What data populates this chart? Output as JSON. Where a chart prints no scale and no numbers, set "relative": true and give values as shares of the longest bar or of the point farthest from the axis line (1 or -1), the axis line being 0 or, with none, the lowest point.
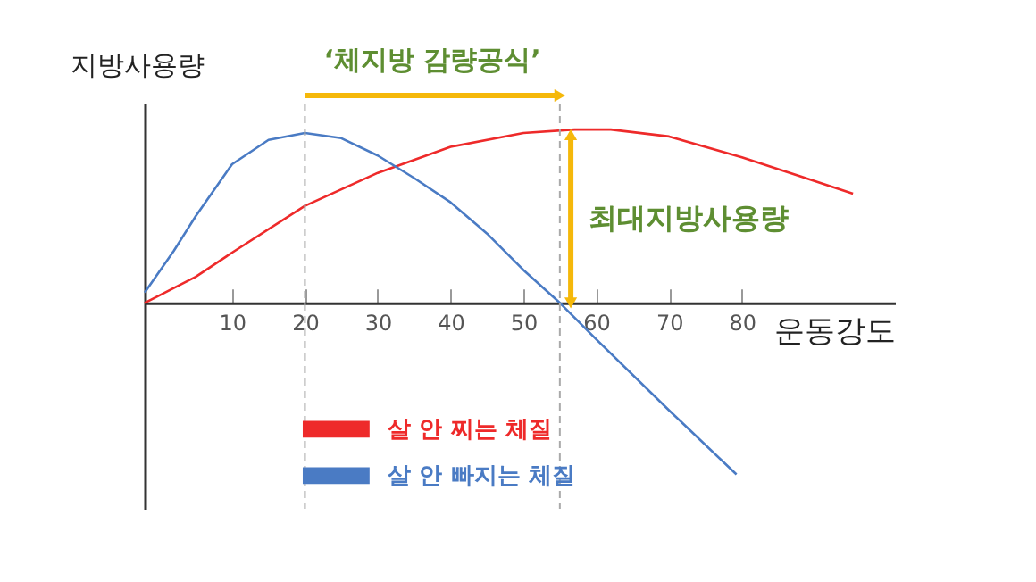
{
  "chart_data": {
    "type": "line",
    "relative": true,
    "xlabel": "운동강도",
    "ylabel": "지방사용량",
    "xlim": [
      -2,
      101
    ],
    "xticks": [
      10,
      20,
      30,
      40,
      50,
      60,
      70,
      80
    ],
    "series": [
      {
        "name": "살 안 찌는 체질",
        "color": "#ee2a2a",
        "x": [
          -2,
          5,
          10,
          20,
          30,
          40,
          50,
          57,
          62,
          70,
          80,
          88,
          95.25
        ],
        "values": [
          0,
          0.15,
          0.29,
          0.56,
          0.75,
          0.9,
          0.98,
          1,
          1,
          0.96,
          0.84,
          0.73,
          0.63
        ]
      },
      {
        "name": "살 안 빠지는 체질",
        "color": "#4a7bc4",
        "x": [
          -2,
          2,
          5,
          10,
          15,
          20,
          25,
          30,
          35,
          40,
          45,
          50,
          55,
          60,
          70,
          79.25
        ],
        "values": [
          0.06,
          0.3,
          0.5,
          0.8,
          0.94,
          0.98,
          0.95,
          0.85,
          0.72,
          0.58,
          0.4,
          0.19,
          0,
          -0.21,
          -0.62,
          -0.99
        ]
      }
    ],
    "ref_lines": [
      {
        "axis": "x",
        "value": 20,
        "color": "#aaaaaa",
        "line_style": "dashed"
      },
      {
        "axis": "x",
        "value": 55,
        "color": "#aaaaaa",
        "line_style": "dashed"
      }
    ],
    "annotations": [
      "‘체지방 감량공식’",
      {
        "text": "최대지방사용량",
        "x": 56.5,
        "y": 0.97
      }
    ],
    "legend": "bottom"
  }
}
